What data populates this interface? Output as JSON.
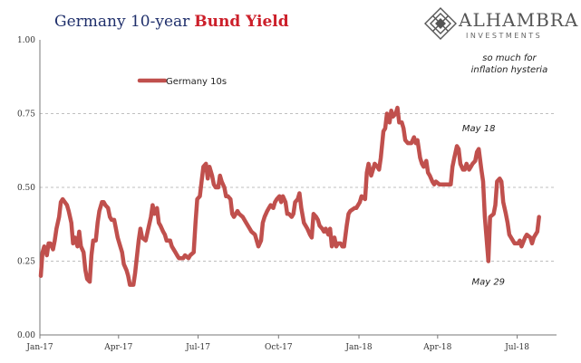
{
  "header": {
    "title_part1": "Germany 10-year",
    "title_part2": "Bund Yield",
    "logo_name": "ALHAMBRA",
    "logo_sub": "INVESTMENTS",
    "logo_icon": "diamond-lattice-icon"
  },
  "colors": {
    "series": "#c0504d",
    "title_blue": "#1f2f6b",
    "title_red": "#cc1f2a",
    "grid": "#aaaaaa"
  },
  "chart_data": {
    "type": "line",
    "title": "Germany 10-year Bund Yield",
    "xlabel": "",
    "ylabel": "",
    "ylim": [
      0,
      1.0
    ],
    "yticks": [
      0.0,
      0.25,
      0.5,
      0.75,
      1.0
    ],
    "ytick_labels": [
      "0.00",
      "0.25",
      "0.50",
      "0.75",
      "1.00"
    ],
    "xlim": [
      "2017-01-01",
      "2018-08-15"
    ],
    "xticks": [
      "2017-01-01",
      "2017-04-01",
      "2017-07-01",
      "2017-10-01",
      "2018-01-01",
      "2018-04-01",
      "2018-07-01"
    ],
    "xtick_labels": [
      "Jan-17",
      "Apr-17",
      "Jul-17",
      "Oct-17",
      "Jan-18",
      "Apr-18",
      "Jul-18"
    ],
    "grid": true,
    "legend_position": "top-left",
    "series": [
      {
        "name": "Germany 10s",
        "points": [
          [
            "2017-01-02",
            0.2
          ],
          [
            "2017-01-04",
            0.28
          ],
          [
            "2017-01-06",
            0.3
          ],
          [
            "2017-01-09",
            0.27
          ],
          [
            "2017-01-11",
            0.31
          ],
          [
            "2017-01-13",
            0.31
          ],
          [
            "2017-01-16",
            0.29
          ],
          [
            "2017-01-18",
            0.32
          ],
          [
            "2017-01-20",
            0.36
          ],
          [
            "2017-01-23",
            0.4
          ],
          [
            "2017-01-25",
            0.45
          ],
          [
            "2017-01-27",
            0.46
          ],
          [
            "2017-02-01",
            0.44
          ],
          [
            "2017-02-03",
            0.42
          ],
          [
            "2017-02-06",
            0.38
          ],
          [
            "2017-02-08",
            0.31
          ],
          [
            "2017-02-10",
            0.33
          ],
          [
            "2017-02-13",
            0.3
          ],
          [
            "2017-02-15",
            0.35
          ],
          [
            "2017-02-17",
            0.3
          ],
          [
            "2017-02-20",
            0.28
          ],
          [
            "2017-02-22",
            0.22
          ],
          [
            "2017-02-24",
            0.19
          ],
          [
            "2017-02-27",
            0.18
          ],
          [
            "2017-03-01",
            0.27
          ],
          [
            "2017-03-03",
            0.32
          ],
          [
            "2017-03-06",
            0.32
          ],
          [
            "2017-03-08",
            0.38
          ],
          [
            "2017-03-10",
            0.42
          ],
          [
            "2017-03-13",
            0.45
          ],
          [
            "2017-03-15",
            0.45
          ],
          [
            "2017-03-17",
            0.44
          ],
          [
            "2017-03-20",
            0.43
          ],
          [
            "2017-03-22",
            0.4
          ],
          [
            "2017-03-24",
            0.39
          ],
          [
            "2017-03-27",
            0.39
          ],
          [
            "2017-03-29",
            0.36
          ],
          [
            "2017-03-31",
            0.33
          ],
          [
            "2017-04-03",
            0.3
          ],
          [
            "2017-04-05",
            0.28
          ],
          [
            "2017-04-07",
            0.24
          ],
          [
            "2017-04-10",
            0.22
          ],
          [
            "2017-04-12",
            0.2
          ],
          [
            "2017-04-14",
            0.17
          ],
          [
            "2017-04-18",
            0.17
          ],
          [
            "2017-04-20",
            0.21
          ],
          [
            "2017-04-24",
            0.32
          ],
          [
            "2017-04-26",
            0.36
          ],
          [
            "2017-04-28",
            0.33
          ],
          [
            "2017-05-02",
            0.32
          ],
          [
            "2017-05-05",
            0.36
          ],
          [
            "2017-05-08",
            0.4
          ],
          [
            "2017-05-10",
            0.44
          ],
          [
            "2017-05-12",
            0.41
          ],
          [
            "2017-05-15",
            0.43
          ],
          [
            "2017-05-17",
            0.38
          ],
          [
            "2017-05-19",
            0.37
          ],
          [
            "2017-05-22",
            0.35
          ],
          [
            "2017-05-24",
            0.34
          ],
          [
            "2017-05-26",
            0.32
          ],
          [
            "2017-05-30",
            0.32
          ],
          [
            "2017-06-01",
            0.3
          ],
          [
            "2017-06-05",
            0.28
          ],
          [
            "2017-06-07",
            0.27
          ],
          [
            "2017-06-09",
            0.26
          ],
          [
            "2017-06-12",
            0.26
          ],
          [
            "2017-06-14",
            0.26
          ],
          [
            "2017-06-16",
            0.27
          ],
          [
            "2017-06-20",
            0.26
          ],
          [
            "2017-06-22",
            0.27
          ],
          [
            "2017-06-26",
            0.28
          ],
          [
            "2017-06-28",
            0.38
          ],
          [
            "2017-06-30",
            0.46
          ],
          [
            "2017-07-03",
            0.47
          ],
          [
            "2017-07-05",
            0.52
          ],
          [
            "2017-07-07",
            0.57
          ],
          [
            "2017-07-10",
            0.58
          ],
          [
            "2017-07-12",
            0.53
          ],
          [
            "2017-07-14",
            0.57
          ],
          [
            "2017-07-17",
            0.54
          ],
          [
            "2017-07-19",
            0.51
          ],
          [
            "2017-07-21",
            0.5
          ],
          [
            "2017-07-24",
            0.5
          ],
          [
            "2017-07-26",
            0.54
          ],
          [
            "2017-07-28",
            0.52
          ],
          [
            "2017-07-31",
            0.5
          ],
          [
            "2017-08-02",
            0.47
          ],
          [
            "2017-08-04",
            0.47
          ],
          [
            "2017-08-07",
            0.46
          ],
          [
            "2017-08-09",
            0.41
          ],
          [
            "2017-08-11",
            0.4
          ],
          [
            "2017-08-15",
            0.42
          ],
          [
            "2017-08-17",
            0.41
          ],
          [
            "2017-08-21",
            0.4
          ],
          [
            "2017-08-23",
            0.39
          ],
          [
            "2017-08-25",
            0.38
          ],
          [
            "2017-08-29",
            0.36
          ],
          [
            "2017-08-31",
            0.35
          ],
          [
            "2017-09-04",
            0.34
          ],
          [
            "2017-09-06",
            0.32
          ],
          [
            "2017-09-08",
            0.3
          ],
          [
            "2017-09-11",
            0.32
          ],
          [
            "2017-09-13",
            0.38
          ],
          [
            "2017-09-15",
            0.4
          ],
          [
            "2017-09-18",
            0.42
          ],
          [
            "2017-09-20",
            0.43
          ],
          [
            "2017-09-22",
            0.44
          ],
          [
            "2017-09-25",
            0.43
          ],
          [
            "2017-09-27",
            0.45
          ],
          [
            "2017-09-29",
            0.46
          ],
          [
            "2017-10-02",
            0.47
          ],
          [
            "2017-10-04",
            0.45
          ],
          [
            "2017-10-06",
            0.47
          ],
          [
            "2017-10-09",
            0.45
          ],
          [
            "2017-10-11",
            0.41
          ],
          [
            "2017-10-13",
            0.41
          ],
          [
            "2017-10-16",
            0.4
          ],
          [
            "2017-10-18",
            0.41
          ],
          [
            "2017-10-20",
            0.45
          ],
          [
            "2017-10-23",
            0.46
          ],
          [
            "2017-10-25",
            0.48
          ],
          [
            "2017-10-27",
            0.43
          ],
          [
            "2017-10-30",
            0.38
          ],
          [
            "2017-11-01",
            0.37
          ],
          [
            "2017-11-03",
            0.36
          ],
          [
            "2017-11-06",
            0.34
          ],
          [
            "2017-11-08",
            0.33
          ],
          [
            "2017-11-10",
            0.41
          ],
          [
            "2017-11-13",
            0.4
          ],
          [
            "2017-11-15",
            0.39
          ],
          [
            "2017-11-17",
            0.37
          ],
          [
            "2017-11-20",
            0.36
          ],
          [
            "2017-11-22",
            0.35
          ],
          [
            "2017-11-24",
            0.36
          ],
          [
            "2017-11-27",
            0.34
          ],
          [
            "2017-11-29",
            0.36
          ],
          [
            "2017-12-01",
            0.3
          ],
          [
            "2017-12-04",
            0.33
          ],
          [
            "2017-12-06",
            0.3
          ],
          [
            "2017-12-08",
            0.31
          ],
          [
            "2017-12-11",
            0.31
          ],
          [
            "2017-12-13",
            0.3
          ],
          [
            "2017-12-15",
            0.3
          ],
          [
            "2017-12-18",
            0.37
          ],
          [
            "2017-12-20",
            0.41
          ],
          [
            "2017-12-22",
            0.42
          ],
          [
            "2017-12-27",
            0.43
          ],
          [
            "2017-12-29",
            0.43
          ],
          [
            "2018-01-02",
            0.45
          ],
          [
            "2018-01-04",
            0.47
          ],
          [
            "2018-01-08",
            0.46
          ],
          [
            "2018-01-10",
            0.55
          ],
          [
            "2018-01-12",
            0.58
          ],
          [
            "2018-01-15",
            0.54
          ],
          [
            "2018-01-17",
            0.56
          ],
          [
            "2018-01-19",
            0.58
          ],
          [
            "2018-01-22",
            0.57
          ],
          [
            "2018-01-24",
            0.56
          ],
          [
            "2018-01-26",
            0.6
          ],
          [
            "2018-01-29",
            0.69
          ],
          [
            "2018-01-31",
            0.7
          ],
          [
            "2018-02-02",
            0.75
          ],
          [
            "2018-02-05",
            0.72
          ],
          [
            "2018-02-07",
            0.76
          ],
          [
            "2018-02-09",
            0.74
          ],
          [
            "2018-02-12",
            0.75
          ],
          [
            "2018-02-14",
            0.77
          ],
          [
            "2018-02-16",
            0.72
          ],
          [
            "2018-02-19",
            0.72
          ],
          [
            "2018-02-21",
            0.7
          ],
          [
            "2018-02-23",
            0.66
          ],
          [
            "2018-02-26",
            0.65
          ],
          [
            "2018-02-28",
            0.65
          ],
          [
            "2018-03-02",
            0.65
          ],
          [
            "2018-03-05",
            0.67
          ],
          [
            "2018-03-07",
            0.65
          ],
          [
            "2018-03-09",
            0.66
          ],
          [
            "2018-03-12",
            0.6
          ],
          [
            "2018-03-14",
            0.58
          ],
          [
            "2018-03-16",
            0.57
          ],
          [
            "2018-03-19",
            0.59
          ],
          [
            "2018-03-21",
            0.55
          ],
          [
            "2018-03-23",
            0.54
          ],
          [
            "2018-03-26",
            0.52
          ],
          [
            "2018-03-28",
            0.51
          ],
          [
            "2018-03-30",
            0.52
          ],
          [
            "2018-04-03",
            0.51
          ],
          [
            "2018-04-05",
            0.51
          ],
          [
            "2018-04-09",
            0.51
          ],
          [
            "2018-04-11",
            0.51
          ],
          [
            "2018-04-13",
            0.51
          ],
          [
            "2018-04-16",
            0.51
          ],
          [
            "2018-04-18",
            0.57
          ],
          [
            "2018-04-20",
            0.6
          ],
          [
            "2018-04-23",
            0.64
          ],
          [
            "2018-04-25",
            0.63
          ],
          [
            "2018-04-27",
            0.58
          ],
          [
            "2018-04-30",
            0.56
          ],
          [
            "2018-05-02",
            0.56
          ],
          [
            "2018-05-04",
            0.58
          ],
          [
            "2018-05-07",
            0.56
          ],
          [
            "2018-05-09",
            0.57
          ],
          [
            "2018-05-11",
            0.58
          ],
          [
            "2018-05-14",
            0.59
          ],
          [
            "2018-05-16",
            0.62
          ],
          [
            "2018-05-18",
            0.63
          ],
          [
            "2018-05-21",
            0.56
          ],
          [
            "2018-05-23",
            0.52
          ],
          [
            "2018-05-25",
            0.4
          ],
          [
            "2018-05-29",
            0.25
          ],
          [
            "2018-05-31",
            0.4
          ],
          [
            "2018-06-04",
            0.41
          ],
          [
            "2018-06-06",
            0.44
          ],
          [
            "2018-06-08",
            0.52
          ],
          [
            "2018-06-11",
            0.53
          ],
          [
            "2018-06-13",
            0.52
          ],
          [
            "2018-06-15",
            0.45
          ],
          [
            "2018-06-18",
            0.41
          ],
          [
            "2018-06-20",
            0.38
          ],
          [
            "2018-06-22",
            0.34
          ],
          [
            "2018-06-26",
            0.32
          ],
          [
            "2018-06-28",
            0.31
          ],
          [
            "2018-07-02",
            0.31
          ],
          [
            "2018-07-04",
            0.32
          ],
          [
            "2018-07-06",
            0.3
          ],
          [
            "2018-07-10",
            0.33
          ],
          [
            "2018-07-12",
            0.34
          ],
          [
            "2018-07-16",
            0.33
          ],
          [
            "2018-07-18",
            0.31
          ],
          [
            "2018-07-20",
            0.33
          ],
          [
            "2018-07-24",
            0.35
          ],
          [
            "2018-07-26",
            0.4
          ]
        ]
      }
    ],
    "annotations": [
      {
        "lines": [
          "so much for",
          "inflation hysteria"
        ],
        "date": "2018-06-22",
        "value": 0.93
      },
      {
        "lines": [
          "May 18"
        ],
        "date": "2018-05-18",
        "value": 0.69
      },
      {
        "lines": [
          "May 29"
        ],
        "date": "2018-05-29",
        "value": 0.17
      }
    ]
  }
}
